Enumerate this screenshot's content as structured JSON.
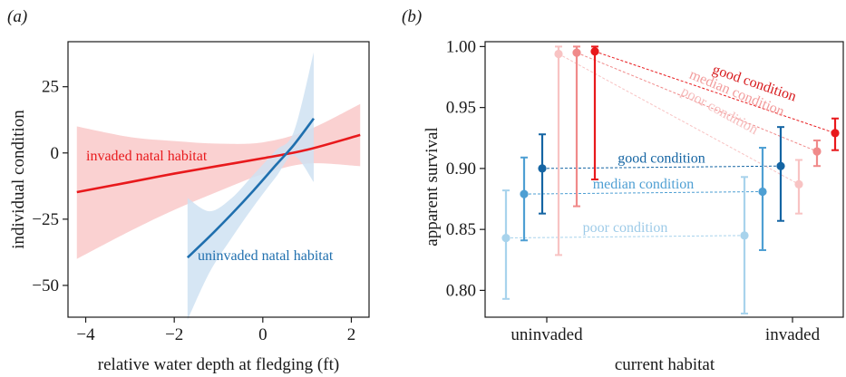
{
  "chart_data": [
    {
      "type": "line",
      "panel_label": "(a)",
      "xlabel": "relative water depth at fledging (ft)",
      "ylabel": "individual condition",
      "xlim": [
        -4.4,
        2.4
      ],
      "ylim": [
        -62,
        42
      ],
      "xticks": [
        -4,
        -2,
        0,
        2
      ],
      "yticks": [
        25,
        0,
        -25,
        -50
      ],
      "xtick_labels": [
        "−4",
        "−2",
        "0",
        "2"
      ],
      "ytick_labels": [
        "25",
        "0",
        "−25",
        "−50"
      ],
      "grid": false,
      "series": [
        {
          "name": "invaded natal habitat",
          "color": "#e8191c",
          "band_color": "#f9c9c9",
          "x": [
            -4.2,
            -3.0,
            -2.0,
            -1.0,
            0.0,
            1.0,
            2.2
          ],
          "y": [
            -14.8,
            -11.0,
            -7.8,
            -4.9,
            -2.0,
            1.2,
            6.8
          ],
          "lower": [
            -40.0,
            -29.5,
            -21.5,
            -14.5,
            -8.0,
            -4.0,
            -5.0
          ],
          "upper": [
            10.0,
            6.0,
            4.5,
            3.5,
            4.0,
            8.5,
            18.5
          ]
        },
        {
          "name": "uninvaded natal habitat",
          "color": "#1f6fae",
          "band_color": "#cfe2f2",
          "x": [
            -1.7,
            -1.2,
            -0.7,
            -0.2,
            0.3,
            0.7,
            1.15
          ],
          "y": [
            -39.5,
            -31.5,
            -23.0,
            -14.0,
            -4.5,
            3.0,
            13.0
          ],
          "lower": [
            -63.0,
            -45.0,
            -32.0,
            -20.0,
            -9.0,
            -1.0,
            -11.0
          ],
          "upper": [
            -17.0,
            -22.0,
            -17.0,
            -8.0,
            1.0,
            8.0,
            38.0
          ]
        }
      ]
    },
    {
      "type": "scatter",
      "panel_label": "(b)",
      "xlabel": "current habitat",
      "ylabel": "apparent survival",
      "categories": [
        "uninvaded",
        "invaded"
      ],
      "ylim": [
        0.778,
        1.004
      ],
      "yticks": [
        1.0,
        0.95,
        0.9,
        0.85,
        0.8
      ],
      "ytick_labels": [
        "1.00",
        "0.95",
        "0.90",
        "0.85",
        "0.80"
      ],
      "grid": false,
      "series": [
        {
          "name": "poor condition",
          "color": "#a8d3ec",
          "label_color": "#9ecbe8",
          "estimates": [
            {
              "habitat": "uninvaded",
              "value": 0.843,
              "lower": 0.793,
              "upper": 0.882
            },
            {
              "habitat": "invaded",
              "value": 0.845,
              "lower": 0.781,
              "upper": 0.893
            }
          ]
        },
        {
          "name": "median condition",
          "color": "#4e9fd3",
          "label_color": "#4e9fd3",
          "estimates": [
            {
              "habitat": "uninvaded",
              "value": 0.879,
              "lower": 0.841,
              "upper": 0.909
            },
            {
              "habitat": "invaded",
              "value": 0.881,
              "lower": 0.833,
              "upper": 0.917
            }
          ]
        },
        {
          "name": "good condition",
          "color": "#1565a3",
          "label_color": "#1565a3",
          "estimates": [
            {
              "habitat": "uninvaded",
              "value": 0.9,
              "lower": 0.863,
              "upper": 0.928
            },
            {
              "habitat": "invaded",
              "value": 0.902,
              "lower": 0.857,
              "upper": 0.934
            }
          ]
        },
        {
          "name": "poor condition",
          "color": "#f8c3c3",
          "label_color": "#f6bcbc",
          "estimates": [
            {
              "habitat": "uninvaded",
              "value": 0.994,
              "lower": 0.829,
              "upper": 1.0
            },
            {
              "habitat": "invaded",
              "value": 0.887,
              "lower": 0.863,
              "upper": 0.907
            }
          ]
        },
        {
          "name": "median condition",
          "color": "#f08a8a",
          "label_color": "#f29c9c",
          "estimates": [
            {
              "habitat": "uninvaded",
              "value": 0.995,
              "lower": 0.869,
              "upper": 1.0
            },
            {
              "habitat": "invaded",
              "value": 0.914,
              "lower": 0.902,
              "upper": 0.923
            }
          ]
        },
        {
          "name": "good condition",
          "color": "#e8191c",
          "label_color": "#d71a1d",
          "estimates": [
            {
              "habitat": "uninvaded",
              "value": 0.996,
              "lower": 0.891,
              "upper": 1.0
            },
            {
              "habitat": "invaded",
              "value": 0.929,
              "lower": 0.915,
              "upper": 0.941
            }
          ]
        }
      ]
    }
  ]
}
